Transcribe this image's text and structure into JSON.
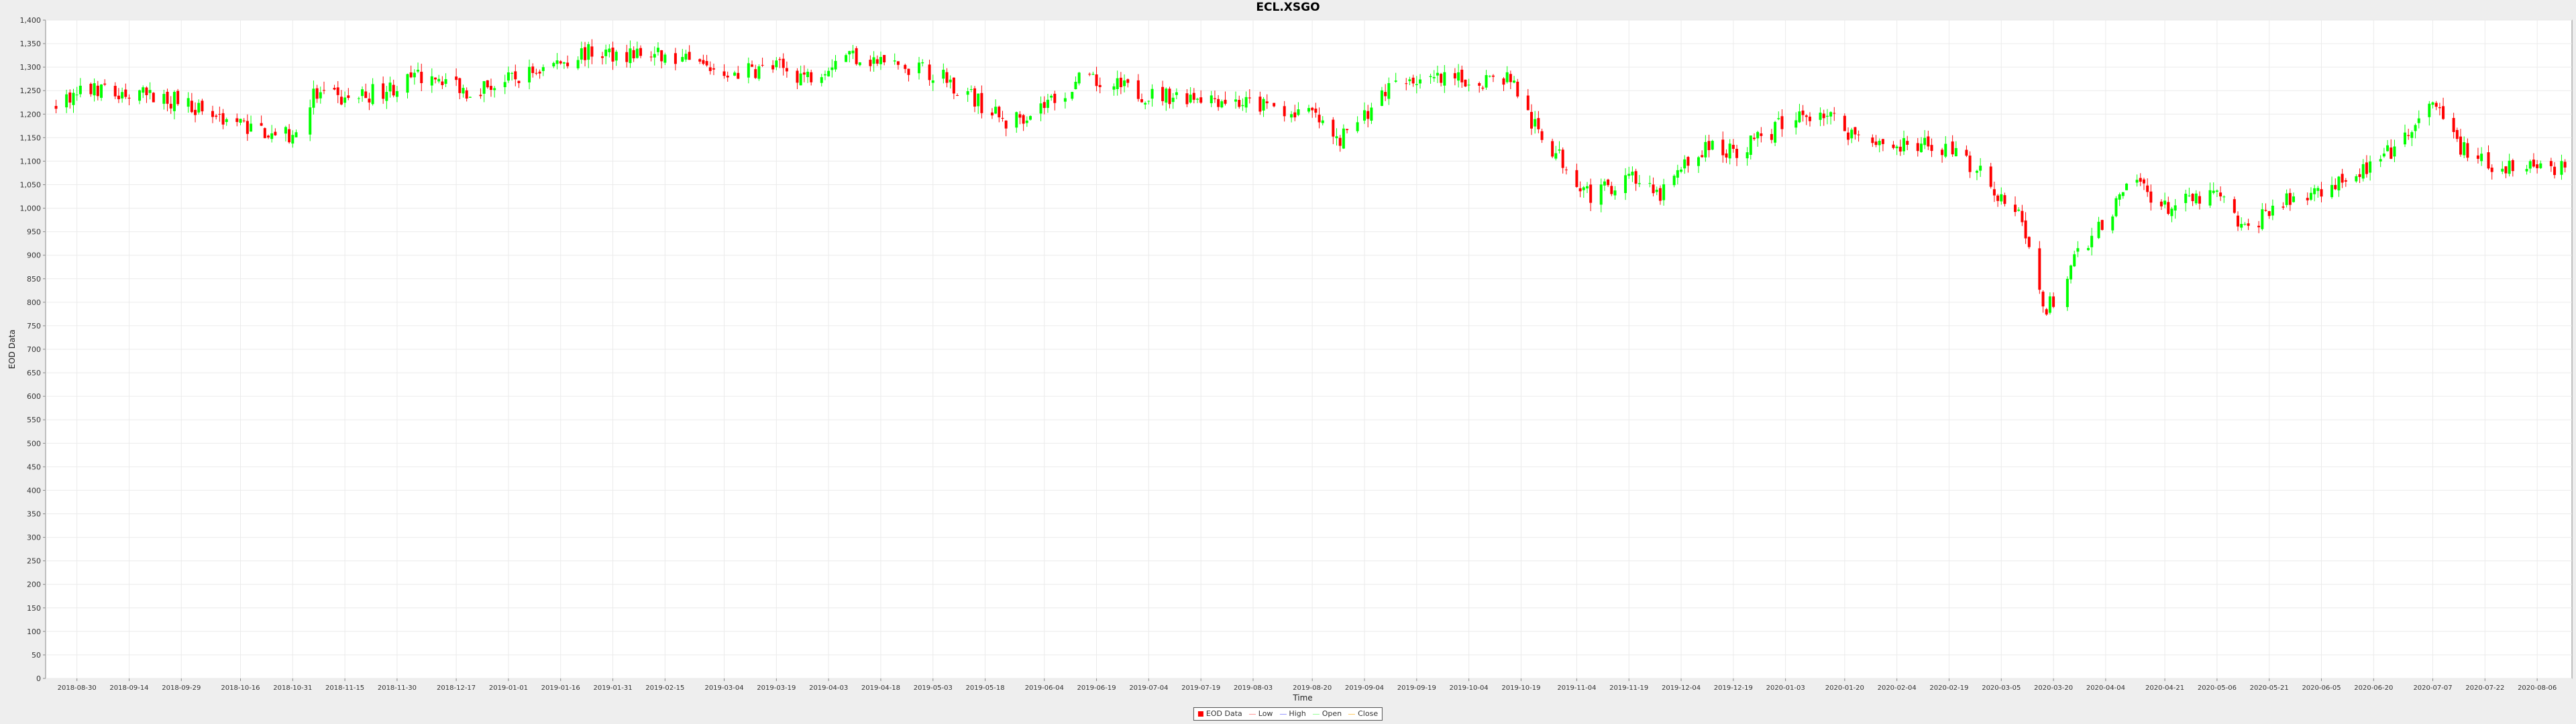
{
  "chart_data": {
    "type": "candlestick",
    "title": "ECL.XSGO",
    "xlabel": "Time",
    "ylabel": "EOD Data",
    "ylim": [
      0,
      1400
    ],
    "y_ticks": [
      "0",
      "50",
      "100",
      "150",
      "200",
      "250",
      "300",
      "350",
      "400",
      "450",
      "500",
      "550",
      "600",
      "650",
      "700",
      "750",
      "800",
      "850",
      "900",
      "950",
      "1,000",
      "1,050",
      "1,100",
      "1,150",
      "1,200",
      "1,250",
      "1,300",
      "1,350",
      "1,400"
    ],
    "x_ticks": [
      "2018-08-30",
      "2018-09-14",
      "2018-09-29",
      "2018-10-16",
      "2018-10-31",
      "2018-11-15",
      "2018-11-30",
      "2018-12-17",
      "2019-01-01",
      "2019-01-16",
      "2019-01-31",
      "2019-02-15",
      "2019-03-04",
      "2019-03-19",
      "2019-04-03",
      "2019-04-18",
      "2019-05-03",
      "2019-05-18",
      "2019-06-04",
      "2019-06-19",
      "2019-07-04",
      "2019-07-19",
      "2019-08-03",
      "2019-08-20",
      "2019-09-04",
      "2019-09-19",
      "2019-10-04",
      "2019-10-19",
      "2019-11-04",
      "2019-11-19",
      "2019-12-04",
      "2019-12-19",
      "2020-01-03",
      "2020-01-20",
      "2020-02-04",
      "2020-02-19",
      "2020-03-05",
      "2020-03-20",
      "2020-04-04",
      "2020-04-21",
      "2020-05-06",
      "2020-05-21",
      "2020-06-05",
      "2020-06-20",
      "2020-07-07",
      "2020-07-22",
      "2020-08-06"
    ],
    "x_range": [
      "2018-08-21",
      "2020-08-16"
    ],
    "grid": true,
    "legend_position": "bottom-center",
    "legend": [
      "EOD Data",
      "Low",
      "High",
      "Open",
      "Close"
    ],
    "up_color": "#00ff00",
    "down_color": "#ff0000",
    "close_path": [
      [
        "2018-08-23",
        1220
      ],
      [
        "2018-09-02",
        1250
      ],
      [
        "2018-09-14",
        1240
      ],
      [
        "2018-09-29",
        1230
      ],
      [
        "2018-10-08",
        1200
      ],
      [
        "2018-10-20",
        1170
      ],
      [
        "2018-10-31",
        1150
      ],
      [
        "2018-11-06",
        1240
      ],
      [
        "2018-11-15",
        1230
      ],
      [
        "2018-11-30",
        1260
      ],
      [
        "2018-12-10",
        1290
      ],
      [
        "2018-12-20",
        1250
      ],
      [
        "2019-01-01",
        1270
      ],
      [
        "2019-01-12",
        1300
      ],
      [
        "2019-01-22",
        1330
      ],
      [
        "2019-02-05",
        1330
      ],
      [
        "2019-02-15",
        1320
      ],
      [
        "2019-02-26",
        1300
      ],
      [
        "2019-03-08",
        1290
      ],
      [
        "2019-03-19",
        1300
      ],
      [
        "2019-03-28",
        1280
      ],
      [
        "2019-04-08",
        1330
      ],
      [
        "2019-04-18",
        1310
      ],
      [
        "2019-05-03",
        1290
      ],
      [
        "2019-05-12",
        1250
      ],
      [
        "2019-05-24",
        1180
      ],
      [
        "2019-06-04",
        1220
      ],
      [
        "2019-06-14",
        1270
      ],
      [
        "2019-06-24",
        1260
      ],
      [
        "2019-07-04",
        1240
      ],
      [
        "2019-07-19",
        1240
      ],
      [
        "2019-08-03",
        1220
      ],
      [
        "2019-08-20",
        1200
      ],
      [
        "2019-08-27",
        1140
      ],
      [
        "2019-09-04",
        1200
      ],
      [
        "2019-09-14",
        1280
      ],
      [
        "2019-09-21",
        1270
      ],
      [
        "2019-10-04",
        1270
      ],
      [
        "2019-10-16",
        1280
      ],
      [
        "2019-10-22",
        1180
      ],
      [
        "2019-10-31",
        1100
      ],
      [
        "2019-11-09",
        1020
      ],
      [
        "2019-11-19",
        1080
      ],
      [
        "2019-11-27",
        1020
      ],
      [
        "2019-12-04",
        1080
      ],
      [
        "2019-12-11",
        1130
      ],
      [
        "2019-12-19",
        1120
      ],
      [
        "2020-01-03",
        1180
      ],
      [
        "2020-01-13",
        1210
      ],
      [
        "2020-01-22",
        1160
      ],
      [
        "2020-02-04",
        1130
      ],
      [
        "2020-02-19",
        1130
      ],
      [
        "2020-03-01",
        1060
      ],
      [
        "2020-03-10",
        980
      ],
      [
        "2020-03-18",
        780
      ],
      [
        "2020-03-27",
        900
      ],
      [
        "2020-04-04",
        980
      ],
      [
        "2020-04-13",
        1060
      ],
      [
        "2020-04-21",
        1000
      ],
      [
        "2020-05-06",
        1030
      ],
      [
        "2020-05-14",
        950
      ],
      [
        "2020-05-21",
        1000
      ],
      [
        "2020-06-02",
        1030
      ],
      [
        "2020-06-09",
        1060
      ],
      [
        "2020-06-20",
        1090
      ],
      [
        "2020-06-30",
        1150
      ],
      [
        "2020-07-07",
        1220
      ],
      [
        "2020-07-14",
        1140
      ],
      [
        "2020-07-22",
        1090
      ],
      [
        "2020-08-06",
        1100
      ],
      [
        "2020-08-14",
        1080
      ]
    ]
  }
}
